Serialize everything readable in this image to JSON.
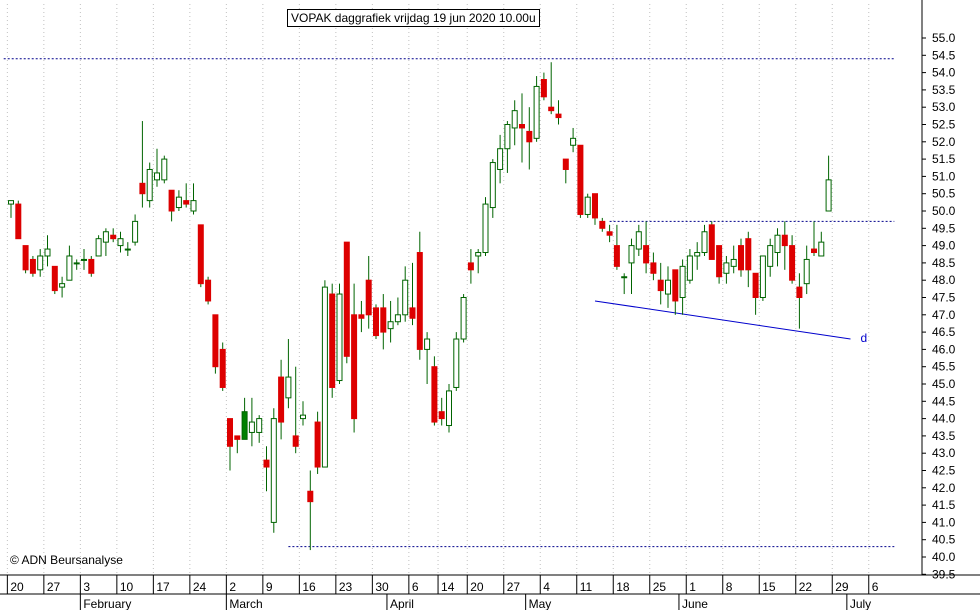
{
  "chart_data": {
    "type": "candlestick",
    "title": "VOPAK daggrafiek vrijdag 19 jun 2020 10.00u",
    "copyright": "© ADN Beursanalyse",
    "ylim": [
      39.5,
      55.5
    ],
    "yticks": [
      "39.5",
      "40.0",
      "40.5",
      "41.0",
      "41.5",
      "42.0",
      "42.5",
      "43.0",
      "43.5",
      "44.0",
      "44.5",
      "45.0",
      "45.5",
      "46.0",
      "46.5",
      "47.0",
      "47.5",
      "48.0",
      "48.5",
      "49.0",
      "49.5",
      "50.0",
      "50.5",
      "51.0",
      "51.5",
      "52.0",
      "52.5",
      "53.0",
      "53.5",
      "54.0",
      "54.5",
      "55.0"
    ],
    "day_labels": [
      {
        "label": "20",
        "i": 0
      },
      {
        "label": "27",
        "i": 5
      },
      {
        "label": "3",
        "i": 10
      },
      {
        "label": "10",
        "i": 15
      },
      {
        "label": "17",
        "i": 20
      },
      {
        "label": "24",
        "i": 25
      },
      {
        "label": "2",
        "i": 30
      },
      {
        "label": "9",
        "i": 35
      },
      {
        "label": "16",
        "i": 40
      },
      {
        "label": "23",
        "i": 45
      },
      {
        "label": "30",
        "i": 50
      },
      {
        "label": "6",
        "i": 55
      },
      {
        "label": "14",
        "i": 59
      },
      {
        "label": "20",
        "i": 63
      },
      {
        "label": "27",
        "i": 68
      },
      {
        "label": "4",
        "i": 73
      },
      {
        "label": "11",
        "i": 78
      },
      {
        "label": "18",
        "i": 83
      },
      {
        "label": "25",
        "i": 88
      },
      {
        "label": "1",
        "i": 93
      },
      {
        "label": "8",
        "i": 98
      },
      {
        "label": "15",
        "i": 103
      },
      {
        "label": "22",
        "i": 108
      },
      {
        "label": "29",
        "i": 113
      },
      {
        "label": "6",
        "i": 118
      }
    ],
    "month_labels": [
      {
        "label": "February",
        "i": 10
      },
      {
        "label": "March",
        "i": 30
      },
      {
        "label": "April",
        "i": 52
      },
      {
        "label": "May",
        "i": 71
      },
      {
        "label": "June",
        "i": 92
      },
      {
        "label": "July",
        "i": 115
      }
    ],
    "candles": [
      {
        "o": 50.2,
        "h": 50.3,
        "l": 49.8,
        "c": 50.3
      },
      {
        "o": 50.2,
        "h": 50.3,
        "l": 49.2,
        "c": 49.2
      },
      {
        "o": 49.0,
        "h": 49.0,
        "l": 48.2,
        "c": 48.3
      },
      {
        "o": 48.6,
        "h": 48.7,
        "l": 48.1,
        "c": 48.2
      },
      {
        "o": 48.3,
        "h": 48.9,
        "l": 48.1,
        "c": 48.7
      },
      {
        "o": 48.7,
        "h": 49.3,
        "l": 48.4,
        "c": 48.9
      },
      {
        "o": 48.4,
        "h": 48.4,
        "l": 47.6,
        "c": 47.7
      },
      {
        "o": 47.8,
        "h": 48.1,
        "l": 47.5,
        "c": 47.9
      },
      {
        "o": 48.0,
        "h": 49.0,
        "l": 48.0,
        "c": 48.7
      },
      {
        "o": 48.5,
        "h": 48.6,
        "l": 48.3,
        "c": 48.5
      },
      {
        "o": 48.6,
        "h": 48.9,
        "l": 48.3,
        "c": 48.6
      },
      {
        "o": 48.6,
        "h": 48.7,
        "l": 48.1,
        "c": 48.2
      },
      {
        "o": 48.7,
        "h": 49.3,
        "l": 48.7,
        "c": 49.2
      },
      {
        "o": 49.1,
        "h": 49.5,
        "l": 48.7,
        "c": 49.4
      },
      {
        "o": 49.3,
        "h": 49.5,
        "l": 49.1,
        "c": 49.2
      },
      {
        "o": 49.0,
        "h": 49.4,
        "l": 48.8,
        "c": 49.2
      },
      {
        "o": 48.9,
        "h": 49.1,
        "l": 48.7,
        "c": 48.9
      },
      {
        "o": 49.1,
        "h": 49.9,
        "l": 49.0,
        "c": 49.7
      },
      {
        "o": 50.8,
        "h": 52.6,
        "l": 50.1,
        "c": 50.5
      },
      {
        "o": 50.3,
        "h": 51.4,
        "l": 50.1,
        "c": 51.2
      },
      {
        "o": 50.9,
        "h": 51.8,
        "l": 50.7,
        "c": 51.1
      },
      {
        "o": 50.9,
        "h": 51.6,
        "l": 50.8,
        "c": 51.5
      },
      {
        "o": 50.6,
        "h": 50.6,
        "l": 49.7,
        "c": 50.0
      },
      {
        "o": 50.1,
        "h": 50.6,
        "l": 50.0,
        "c": 50.4
      },
      {
        "o": 50.3,
        "h": 50.8,
        "l": 50.1,
        "c": 50.2
      },
      {
        "o": 50.0,
        "h": 50.8,
        "l": 49.9,
        "c": 50.3
      },
      {
        "o": 49.6,
        "h": 49.6,
        "l": 47.8,
        "c": 47.9
      },
      {
        "o": 48.0,
        "h": 48.1,
        "l": 47.3,
        "c": 47.4
      },
      {
        "o": 47.0,
        "h": 47.0,
        "l": 45.3,
        "c": 45.5
      },
      {
        "o": 46.0,
        "h": 46.2,
        "l": 44.8,
        "c": 44.9
      },
      {
        "o": 44.0,
        "h": 44.0,
        "l": 42.5,
        "c": 43.2
      },
      {
        "o": 43.5,
        "h": 43.5,
        "l": 43.0,
        "c": 43.4
      },
      {
        "o": 43.4,
        "h": 44.6,
        "l": 43.4,
        "c": 44.2
      },
      {
        "o": 43.6,
        "h": 44.6,
        "l": 43.2,
        "c": 43.9
      },
      {
        "o": 43.6,
        "h": 44.1,
        "l": 43.3,
        "c": 44.0
      },
      {
        "o": 42.8,
        "h": 43.2,
        "l": 41.9,
        "c": 42.6
      },
      {
        "o": 41.0,
        "h": 44.3,
        "l": 40.7,
        "c": 44.0
      },
      {
        "o": 45.2,
        "h": 45.7,
        "l": 43.4,
        "c": 43.9
      },
      {
        "o": 44.6,
        "h": 46.3,
        "l": 44.3,
        "c": 45.2
      },
      {
        "o": 43.5,
        "h": 45.5,
        "l": 43.0,
        "c": 43.2
      },
      {
        "o": 44.0,
        "h": 44.5,
        "l": 43.8,
        "c": 44.1
      },
      {
        "o": 41.9,
        "h": 42.5,
        "l": 40.2,
        "c": 41.6
      },
      {
        "o": 43.9,
        "h": 44.2,
        "l": 42.4,
        "c": 42.6
      },
      {
        "o": 42.6,
        "h": 48.0,
        "l": 42.6,
        "c": 47.8
      },
      {
        "o": 47.6,
        "h": 47.9,
        "l": 44.6,
        "c": 44.9
      },
      {
        "o": 45.1,
        "h": 47.9,
        "l": 45.0,
        "c": 47.6
      },
      {
        "o": 49.1,
        "h": 49.1,
        "l": 45.6,
        "c": 45.8
      },
      {
        "o": 47.0,
        "h": 47.9,
        "l": 43.6,
        "c": 44.0
      },
      {
        "o": 47.0,
        "h": 47.4,
        "l": 46.5,
        "c": 46.9
      },
      {
        "o": 48.0,
        "h": 48.7,
        "l": 46.6,
        "c": 47.0
      },
      {
        "o": 47.2,
        "h": 47.3,
        "l": 46.3,
        "c": 46.4
      },
      {
        "o": 47.2,
        "h": 47.6,
        "l": 46.0,
        "c": 46.5
      },
      {
        "o": 46.6,
        "h": 47.4,
        "l": 46.2,
        "c": 46.8
      },
      {
        "o": 46.8,
        "h": 47.5,
        "l": 46.7,
        "c": 47.0
      },
      {
        "o": 47.0,
        "h": 48.4,
        "l": 46.8,
        "c": 48.0
      },
      {
        "o": 47.2,
        "h": 48.5,
        "l": 46.7,
        "c": 46.9
      },
      {
        "o": 48.8,
        "h": 49.4,
        "l": 45.7,
        "c": 46.0
      },
      {
        "o": 46.0,
        "h": 46.5,
        "l": 45.0,
        "c": 46.3
      },
      {
        "o": 45.5,
        "h": 45.8,
        "l": 43.8,
        "c": 43.9
      },
      {
        "o": 44.2,
        "h": 44.6,
        "l": 43.8,
        "c": 44.0
      },
      {
        "o": 43.8,
        "h": 45.0,
        "l": 43.6,
        "c": 44.8
      },
      {
        "o": 44.9,
        "h": 46.5,
        "l": 44.8,
        "c": 46.3
      },
      {
        "o": 46.3,
        "h": 47.6,
        "l": 46.2,
        "c": 47.5
      },
      {
        "o": 48.5,
        "h": 48.9,
        "l": 47.9,
        "c": 48.3
      },
      {
        "o": 48.7,
        "h": 48.9,
        "l": 48.2,
        "c": 48.8
      },
      {
        "o": 48.8,
        "h": 50.4,
        "l": 48.7,
        "c": 50.2
      },
      {
        "o": 50.1,
        "h": 51.5,
        "l": 49.8,
        "c": 51.4
      },
      {
        "o": 51.2,
        "h": 52.2,
        "l": 50.8,
        "c": 51.8
      },
      {
        "o": 51.8,
        "h": 52.6,
        "l": 51.1,
        "c": 52.5
      },
      {
        "o": 52.4,
        "h": 53.2,
        "l": 51.9,
        "c": 52.9
      },
      {
        "o": 52.5,
        "h": 53.4,
        "l": 51.4,
        "c": 52.4
      },
      {
        "o": 52.3,
        "h": 53.0,
        "l": 51.2,
        "c": 52.0
      },
      {
        "o": 52.1,
        "h": 53.9,
        "l": 52.0,
        "c": 53.6
      },
      {
        "o": 53.8,
        "h": 54.0,
        "l": 53.2,
        "c": 53.3
      },
      {
        "o": 53.0,
        "h": 54.3,
        "l": 52.8,
        "c": 52.9
      },
      {
        "o": 52.8,
        "h": 53.2,
        "l": 52.5,
        "c": 52.7
      },
      {
        "o": 51.5,
        "h": 51.5,
        "l": 50.8,
        "c": 51.2
      },
      {
        "o": 51.9,
        "h": 52.4,
        "l": 51.7,
        "c": 52.1
      },
      {
        "o": 51.9,
        "h": 51.9,
        "l": 49.8,
        "c": 49.9
      },
      {
        "o": 49.9,
        "h": 50.5,
        "l": 49.8,
        "c": 50.4
      },
      {
        "o": 50.5,
        "h": 50.5,
        "l": 49.6,
        "c": 49.8
      },
      {
        "o": 49.7,
        "h": 49.8,
        "l": 49.4,
        "c": 49.5
      },
      {
        "o": 49.4,
        "h": 49.6,
        "l": 49.1,
        "c": 49.3
      },
      {
        "o": 49.0,
        "h": 49.6,
        "l": 48.3,
        "c": 48.4
      },
      {
        "o": 48.1,
        "h": 48.2,
        "l": 47.6,
        "c": 48.1
      },
      {
        "o": 48.5,
        "h": 49.2,
        "l": 47.6,
        "c": 49.0
      },
      {
        "o": 48.9,
        "h": 49.6,
        "l": 48.7,
        "c": 49.4
      },
      {
        "o": 49.0,
        "h": 49.7,
        "l": 48.2,
        "c": 48.5
      },
      {
        "o": 48.5,
        "h": 48.8,
        "l": 48.0,
        "c": 48.2
      },
      {
        "o": 48.0,
        "h": 48.5,
        "l": 47.3,
        "c": 47.7
      },
      {
        "o": 47.6,
        "h": 48.4,
        "l": 47.2,
        "c": 48.0
      },
      {
        "o": 48.3,
        "h": 48.3,
        "l": 47.0,
        "c": 47.4
      },
      {
        "o": 47.5,
        "h": 48.6,
        "l": 47.0,
        "c": 48.4
      },
      {
        "o": 48.0,
        "h": 48.9,
        "l": 47.9,
        "c": 48.7
      },
      {
        "o": 48.7,
        "h": 49.1,
        "l": 48.3,
        "c": 48.8
      },
      {
        "o": 48.8,
        "h": 49.6,
        "l": 48.7,
        "c": 49.4
      },
      {
        "o": 49.6,
        "h": 49.7,
        "l": 48.6,
        "c": 48.6
      },
      {
        "o": 49.0,
        "h": 49.0,
        "l": 47.9,
        "c": 48.1
      },
      {
        "o": 48.2,
        "h": 48.7,
        "l": 47.9,
        "c": 48.5
      },
      {
        "o": 48.4,
        "h": 49.0,
        "l": 48.2,
        "c": 48.6
      },
      {
        "o": 49.0,
        "h": 49.2,
        "l": 48.1,
        "c": 48.3
      },
      {
        "o": 49.2,
        "h": 49.4,
        "l": 47.8,
        "c": 48.3
      },
      {
        "o": 48.2,
        "h": 48.2,
        "l": 47.0,
        "c": 47.5
      },
      {
        "o": 47.5,
        "h": 48.7,
        "l": 47.4,
        "c": 48.7
      },
      {
        "o": 48.4,
        "h": 49.2,
        "l": 48.1,
        "c": 49.0
      },
      {
        "o": 48.8,
        "h": 49.5,
        "l": 48.4,
        "c": 49.3
      },
      {
        "o": 49.3,
        "h": 49.7,
        "l": 48.3,
        "c": 49.0
      },
      {
        "o": 49.0,
        "h": 49.3,
        "l": 47.9,
        "c": 48.0
      },
      {
        "o": 47.8,
        "h": 48.2,
        "l": 46.6,
        "c": 47.5
      },
      {
        "o": 47.9,
        "h": 49.0,
        "l": 47.6,
        "c": 48.6
      },
      {
        "o": 48.9,
        "h": 49.7,
        "l": 48.7,
        "c": 48.8
      },
      {
        "o": 48.7,
        "h": 49.4,
        "l": 48.7,
        "c": 49.1
      },
      {
        "o": 50.0,
        "h": 51.6,
        "l": 50.0,
        "c": 50.9
      }
    ],
    "hlines": [
      {
        "y": 54.4,
        "i_from": -1,
        "i_to": 121,
        "color": "#00008b",
        "style": "dotted"
      },
      {
        "y": 40.3,
        "i_from": 38,
        "i_to": 121,
        "color": "#00008b",
        "style": "dotted"
      },
      {
        "y": 49.7,
        "i_from": 82,
        "i_to": 121,
        "color": "#00008b",
        "style": "dotted"
      }
    ],
    "trendline": {
      "from": {
        "i": 80,
        "y": 47.4
      },
      "to": {
        "i": 115,
        "y": 46.3
      },
      "color": "#0000cc",
      "label": "d"
    },
    "colors": {
      "up": "#ffffff",
      "up_alt": "#008000",
      "down": "#dd0000",
      "wick": "#006400",
      "grid": "#c0c0c0"
    }
  }
}
